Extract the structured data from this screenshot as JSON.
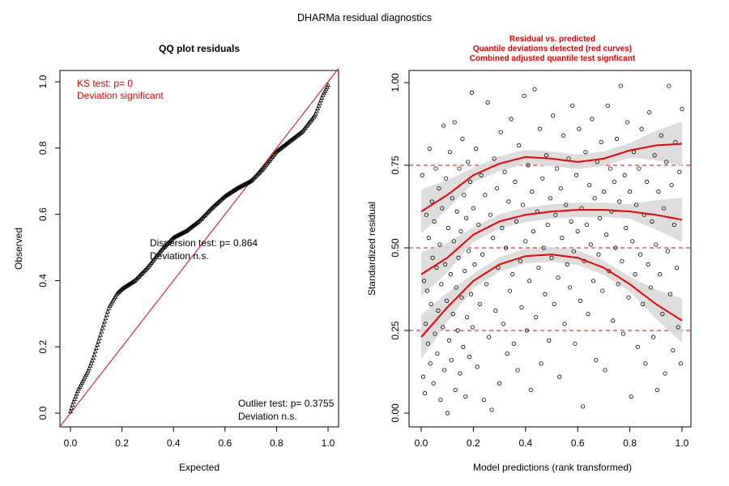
{
  "figure": {
    "title": "DHARMa residual diagnostics"
  },
  "colors": {
    "text": "#000000",
    "accent": "#ee0000",
    "band": "#d9d9d9"
  },
  "chart_data": [
    {
      "type": "scatter",
      "title": "QQ plot residuals",
      "xlabel": "Expected",
      "ylabel": "Observed",
      "xlim": [
        0,
        1
      ],
      "ylim": [
        0,
        1
      ],
      "xticks": [
        "0.0",
        "0.2",
        "0.4",
        "0.6",
        "0.8",
        "1.0"
      ],
      "yticks": [
        "0.0",
        "0.2",
        "0.4",
        "0.6",
        "0.8",
        "1.0"
      ],
      "marker": "triangle",
      "qq_curve": [
        [
          0.0,
          0.005
        ],
        [
          0.01,
          0.03
        ],
        [
          0.03,
          0.07
        ],
        [
          0.05,
          0.1
        ],
        [
          0.07,
          0.13
        ],
        [
          0.09,
          0.17
        ],
        [
          0.11,
          0.22
        ],
        [
          0.13,
          0.27
        ],
        [
          0.15,
          0.32
        ],
        [
          0.18,
          0.36
        ],
        [
          0.2,
          0.375
        ],
        [
          0.25,
          0.4
        ],
        [
          0.3,
          0.44
        ],
        [
          0.35,
          0.49
        ],
        [
          0.4,
          0.53
        ],
        [
          0.45,
          0.55
        ],
        [
          0.5,
          0.58
        ],
        [
          0.55,
          0.62
        ],
        [
          0.6,
          0.655
        ],
        [
          0.65,
          0.68
        ],
        [
          0.7,
          0.7
        ],
        [
          0.75,
          0.74
        ],
        [
          0.8,
          0.79
        ],
        [
          0.85,
          0.82
        ],
        [
          0.9,
          0.85
        ],
        [
          0.95,
          0.9
        ],
        [
          0.98,
          0.96
        ],
        [
          1.0,
          0.99
        ]
      ],
      "reference_line": {
        "slope": 1,
        "intercept": 0
      },
      "annotations": {
        "ks_test": "KS test: p= 0",
        "ks_result": "Deviation  significant",
        "dispersion_test": "Dispersion test: p= 0.864",
        "dispersion_result": "Deviation  n.s.",
        "outlier_test": "Outlier test: p= 0.3755",
        "outlier_result": "Deviation  n.s."
      }
    },
    {
      "type": "scatter",
      "title_lines": [
        "Residual vs. predicted",
        "Quantile deviations detected (red curves)",
        "Combined adjusted quantile test signficant"
      ],
      "xlabel": "Model predictions (rank transformed)",
      "ylabel": "Standardized residual",
      "xlim": [
        0,
        1
      ],
      "ylim": [
        0,
        1
      ],
      "xticks": [
        "0.0",
        "0.2",
        "0.4",
        "0.6",
        "0.8",
        "1.0"
      ],
      "yticks": [
        "0.00",
        "0.25",
        "0.50",
        "0.75",
        "1.00"
      ],
      "reference_lines": [
        0.25,
        0.5,
        0.75
      ],
      "quantile_curves": [
        {
          "quantile": 0.25,
          "points": [
            [
              0,
              0.23
            ],
            [
              0.1,
              0.32
            ],
            [
              0.2,
              0.4
            ],
            [
              0.3,
              0.45
            ],
            [
              0.4,
              0.475
            ],
            [
              0.5,
              0.48
            ],
            [
              0.6,
              0.47
            ],
            [
              0.7,
              0.44
            ],
            [
              0.8,
              0.39
            ],
            [
              0.9,
              0.33
            ],
            [
              1,
              0.28
            ]
          ]
        },
        {
          "quantile": 0.5,
          "points": [
            [
              0,
              0.42
            ],
            [
              0.1,
              0.47
            ],
            [
              0.2,
              0.54
            ],
            [
              0.3,
              0.58
            ],
            [
              0.4,
              0.6
            ],
            [
              0.5,
              0.61
            ],
            [
              0.6,
              0.615
            ],
            [
              0.7,
              0.615
            ],
            [
              0.8,
              0.61
            ],
            [
              0.9,
              0.6
            ],
            [
              1,
              0.585
            ]
          ]
        },
        {
          "quantile": 0.75,
          "points": [
            [
              0,
              0.61
            ],
            [
              0.1,
              0.66
            ],
            [
              0.2,
              0.72
            ],
            [
              0.3,
              0.755
            ],
            [
              0.4,
              0.775
            ],
            [
              0.5,
              0.77
            ],
            [
              0.6,
              0.76
            ],
            [
              0.7,
              0.77
            ],
            [
              0.8,
              0.795
            ],
            [
              0.9,
              0.81
            ],
            [
              1,
              0.815
            ]
          ]
        }
      ],
      "points": [
        [
          0.004,
          0.72
        ],
        [
          0.008,
          0.11
        ],
        [
          0.011,
          0.4
        ],
        [
          0.014,
          0.06
        ],
        [
          0.017,
          0.27
        ],
        [
          0.02,
          0.6
        ],
        [
          0.023,
          0.37
        ],
        [
          0.026,
          0.21
        ],
        [
          0.029,
          0.53
        ],
        [
          0.032,
          0.8
        ],
        [
          0.035,
          0.15
        ],
        [
          0.038,
          0.33
        ],
        [
          0.041,
          0.64
        ],
        [
          0.044,
          0.47
        ],
        [
          0.047,
          0.09
        ],
        [
          0.05,
          0.58
        ],
        [
          0.053,
          0.24
        ],
        [
          0.056,
          0.74
        ],
        [
          0.059,
          0.44
        ],
        [
          0.062,
          0.18
        ],
        [
          0.065,
          0.31
        ],
        [
          0.068,
          0.68
        ],
        [
          0.071,
          0.51
        ],
        [
          0.074,
          0.04
        ],
        [
          0.077,
          0.39
        ],
        [
          0.08,
          0.62
        ],
        [
          0.083,
          0.26
        ],
        [
          0.086,
          0.87
        ],
        [
          0.089,
          0.13
        ],
        [
          0.092,
          0.45
        ],
        [
          0.095,
          0.71
        ],
        [
          0.098,
          0.34
        ],
        [
          0.101,
          0.0
        ],
        [
          0.104,
          0.56
        ],
        [
          0.107,
          0.22
        ],
        [
          0.11,
          0.79
        ],
        [
          0.113,
          0.42
        ],
        [
          0.116,
          0.16
        ],
        [
          0.119,
          0.65
        ],
        [
          0.122,
          0.3
        ],
        [
          0.125,
          0.52
        ],
        [
          0.128,
          0.88
        ],
        [
          0.131,
          0.07
        ],
        [
          0.134,
          0.38
        ],
        [
          0.137,
          0.61
        ],
        [
          0.14,
          0.25
        ],
        [
          0.143,
          0.47
        ],
        [
          0.146,
          0.74
        ],
        [
          0.149,
          0.12
        ],
        [
          0.152,
          0.55
        ],
        [
          0.155,
          0.35
        ],
        [
          0.158,
          0.83
        ],
        [
          0.161,
          0.2
        ],
        [
          0.164,
          0.66
        ],
        [
          0.167,
          0.43
        ],
        [
          0.17,
          0.05
        ],
        [
          0.173,
          0.59
        ],
        [
          0.176,
          0.29
        ],
        [
          0.179,
          0.76
        ],
        [
          0.182,
          0.49
        ],
        [
          0.185,
          0.17
        ],
        [
          0.188,
          0.7
        ],
        [
          0.191,
          0.36
        ],
        [
          0.194,
          0.97
        ],
        [
          0.197,
          0.26
        ],
        [
          0.2,
          0.62
        ],
        [
          0.205,
          0.45
        ],
        [
          0.21,
          0.8
        ],
        [
          0.215,
          0.14
        ],
        [
          0.22,
          0.57
        ],
        [
          0.225,
          0.33
        ],
        [
          0.23,
          0.72
        ],
        [
          0.235,
          0.48
        ],
        [
          0.24,
          0.04
        ],
        [
          0.245,
          0.66
        ],
        [
          0.25,
          0.39
        ],
        [
          0.255,
          0.94
        ],
        [
          0.26,
          0.23
        ],
        [
          0.265,
          0.6
        ],
        [
          0.27,
          0.01
        ],
        [
          0.275,
          0.53
        ],
        [
          0.28,
          0.77
        ],
        [
          0.285,
          0.31
        ],
        [
          0.29,
          0.68
        ],
        [
          0.295,
          0.44
        ],
        [
          0.3,
          0.09
        ],
        [
          0.305,
          0.85
        ],
        [
          0.31,
          0.56
        ],
        [
          0.315,
          0.27
        ],
        [
          0.32,
          0.73
        ],
        [
          0.325,
          0.5
        ],
        [
          0.33,
          0.18
        ],
        [
          0.335,
          0.64
        ],
        [
          0.34,
          0.37
        ],
        [
          0.345,
          0.89
        ],
        [
          0.35,
          0.42
        ],
        [
          0.355,
          0.21
        ],
        [
          0.36,
          0.7
        ],
        [
          0.365,
          0.58
        ],
        [
          0.37,
          0.13
        ],
        [
          0.375,
          0.81
        ],
        [
          0.38,
          0.46
        ],
        [
          0.385,
          0.32
        ],
        [
          0.39,
          0.63
        ],
        [
          0.395,
          0.96
        ],
        [
          0.4,
          0.52
        ],
        [
          0.405,
          0.25
        ],
        [
          0.41,
          0.75
        ],
        [
          0.415,
          0.4
        ],
        [
          0.42,
          0.07
        ],
        [
          0.425,
          0.67
        ],
        [
          0.43,
          0.55
        ],
        [
          0.435,
          0.98
        ],
        [
          0.44,
          0.29
        ],
        [
          0.445,
          0.61
        ],
        [
          0.45,
          0.44
        ],
        [
          0.455,
          0.86
        ],
        [
          0.46,
          0.15
        ],
        [
          0.465,
          0.71
        ],
        [
          0.47,
          0.5
        ],
        [
          0.475,
          0.36
        ],
        [
          0.48,
          0.78
        ],
        [
          0.485,
          0.57
        ],
        [
          0.49,
          0.22
        ],
        [
          0.495,
          0.65
        ],
        [
          0.5,
          0.47
        ],
        [
          0.505,
          0.9
        ],
        [
          0.51,
          0.33
        ],
        [
          0.515,
          0.6
        ],
        [
          0.52,
          0.74
        ],
        [
          0.525,
          0.41
        ],
        [
          0.53,
          0.11
        ],
        [
          0.535,
          0.68
        ],
        [
          0.54,
          0.53
        ],
        [
          0.545,
          0.84
        ],
        [
          0.55,
          0.27
        ],
        [
          0.555,
          0.63
        ],
        [
          0.56,
          0.45
        ],
        [
          0.565,
          0.77
        ],
        [
          0.57,
          0.38
        ],
        [
          0.575,
          0.58
        ],
        [
          0.58,
          0.93
        ],
        [
          0.585,
          0.49
        ],
        [
          0.59,
          0.21
        ],
        [
          0.595,
          0.72
        ],
        [
          0.6,
          0.55
        ],
        [
          0.605,
          0.86
        ],
        [
          0.61,
          0.34
        ],
        [
          0.615,
          0.62
        ],
        [
          0.62,
          0.02
        ],
        [
          0.625,
          0.46
        ],
        [
          0.63,
          0.79
        ],
        [
          0.635,
          0.57
        ],
        [
          0.64,
          0.3
        ],
        [
          0.645,
          0.69
        ],
        [
          0.65,
          0.51
        ],
        [
          0.655,
          0.89
        ],
        [
          0.66,
          0.4
        ],
        [
          0.665,
          0.65
        ],
        [
          0.67,
          0.16
        ],
        [
          0.675,
          0.76
        ],
        [
          0.68,
          0.48
        ],
        [
          0.685,
          0.59
        ],
        [
          0.69,
          0.82
        ],
        [
          0.695,
          0.37
        ],
        [
          0.7,
          0.67
        ],
        [
          0.705,
          0.13
        ],
        [
          0.71,
          0.54
        ],
        [
          0.715,
          0.93
        ],
        [
          0.72,
          0.43
        ],
        [
          0.725,
          0.74
        ],
        [
          0.73,
          0.61
        ],
        [
          0.735,
          0.28
        ],
        [
          0.74,
          0.7
        ],
        [
          0.745,
          0.5
        ],
        [
          0.75,
          0.83
        ],
        [
          0.755,
          0.39
        ],
        [
          0.76,
          0.64
        ],
        [
          0.765,
          0.99
        ],
        [
          0.77,
          0.46
        ],
        [
          0.775,
          0.24
        ],
        [
          0.78,
          0.72
        ],
        [
          0.785,
          0.56
        ],
        [
          0.79,
          0.88
        ],
        [
          0.795,
          0.35
        ],
        [
          0.8,
          0.67
        ],
        [
          0.805,
          0.05
        ],
        [
          0.81,
          0.52
        ],
        [
          0.815,
          0.79
        ],
        [
          0.82,
          0.42
        ],
        [
          0.825,
          0.63
        ],
        [
          0.83,
          0.2
        ],
        [
          0.835,
          0.74
        ],
        [
          0.84,
          0.48
        ],
        [
          0.845,
          0.86
        ],
        [
          0.85,
          0.33
        ],
        [
          0.855,
          0.6
        ],
        [
          0.86,
          0.15
        ],
        [
          0.865,
          0.7
        ],
        [
          0.87,
          0.45
        ],
        [
          0.875,
          0.91
        ],
        [
          0.88,
          0.38
        ],
        [
          0.885,
          0.58
        ],
        [
          0.89,
          0.23
        ],
        [
          0.895,
          0.78
        ],
        [
          0.9,
          0.51
        ],
        [
          0.905,
          0.07
        ],
        [
          0.91,
          0.67
        ],
        [
          0.915,
          0.42
        ],
        [
          0.92,
          0.84
        ],
        [
          0.925,
          0.3
        ],
        [
          0.93,
          0.62
        ],
        [
          0.935,
          0.12
        ],
        [
          0.94,
          0.76
        ],
        [
          0.945,
          0.49
        ],
        [
          0.95,
          0.99
        ],
        [
          0.955,
          0.36
        ],
        [
          0.96,
          0.69
        ],
        [
          0.965,
          0.19
        ],
        [
          0.97,
          0.57
        ],
        [
          0.975,
          0.82
        ],
        [
          0.98,
          0.44
        ],
        [
          0.985,
          0.26
        ],
        [
          0.99,
          0.73
        ],
        [
          0.995,
          0.15
        ],
        [
          1.0,
          0.92
        ]
      ]
    }
  ]
}
